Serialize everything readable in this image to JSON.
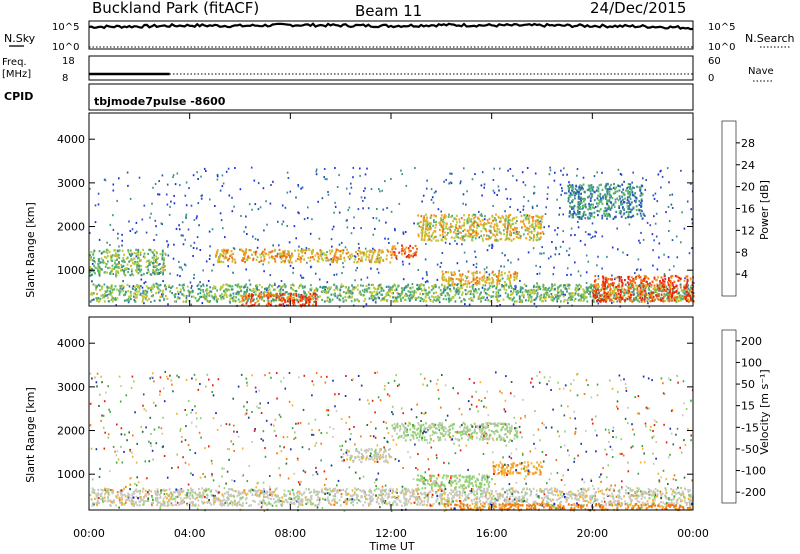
{
  "header": {
    "site": "Buckland Park (fitACF)",
    "beam": "Beam 11",
    "date": "24/Dec/2015"
  },
  "top_panels": {
    "nsky": {
      "label": "N.Sky",
      "left_ticks": [
        "10^5",
        "10^0"
      ],
      "right_ticks": [
        "10^5",
        "10^0"
      ]
    },
    "nsearch": {
      "label": "N.Search"
    },
    "freq": {
      "label_1": "Freq.",
      "label_2": "[MHz]",
      "left_ticks": [
        "18",
        "8"
      ],
      "right_ticks": [
        "60",
        "0"
      ]
    },
    "nave": {
      "label": "Nave"
    },
    "cpid": {
      "label": "CPID",
      "value": "tbjmode7pulse -8600"
    }
  },
  "x_axis": {
    "title": "Time UT",
    "ticks": [
      "00:00",
      "04:00",
      "08:00",
      "12:00",
      "16:00",
      "20:00",
      "00:00"
    ]
  },
  "power_panel": {
    "ylabel": "Slant Range [km]",
    "yticks": [
      "1000",
      "2000",
      "3000",
      "4000"
    ],
    "colorbar_title": "Power [dB]",
    "colorbar_ticks": [
      "4",
      "8",
      "12",
      "16",
      "20",
      "24",
      "28"
    ]
  },
  "velocity_panel": {
    "ylabel": "Slant Range [km]",
    "yticks": [
      "1000",
      "2000",
      "3000",
      "4000"
    ],
    "colorbar_title": "Velocity [m s⁻¹]",
    "colorbar_ticks": [
      "200",
      "100",
      "50",
      "15",
      "-15",
      "-50",
      "-100",
      "-200"
    ]
  },
  "colors": {
    "power_scale": [
      "#1f2fd8",
      "#2a55b8",
      "#3b8f8a",
      "#58b36a",
      "#b8c93a",
      "#f0a020",
      "#f26a12",
      "#e82410"
    ],
    "velocity_scale": [
      "#1b2fa8",
      "#2c6a3a",
      "#3aa83a",
      "#8fd070",
      "#c8c8c0",
      "#f5b030",
      "#f07a10",
      "#e02010"
    ]
  },
  "chart_data": [
    {
      "type": "line",
      "panel": "N.Sky",
      "x_unit": "hours UT",
      "x": [
        0,
        2,
        4,
        6,
        8,
        10,
        12,
        14,
        16,
        18,
        20,
        22,
        24
      ],
      "y_log10": [
        4.2,
        4.3,
        4.5,
        4.4,
        4.6,
        4.5,
        4.4,
        4.6,
        4.5,
        4.5,
        4.4,
        4.3,
        4.0
      ],
      "ylim_log10": [
        0,
        5
      ]
    },
    {
      "type": "line",
      "panel": "Freq",
      "x": [
        0,
        3.2,
        3.2,
        24
      ],
      "y": [
        10.5,
        10.5,
        null,
        null
      ],
      "ylim": [
        8,
        18
      ]
    },
    {
      "type": "heatmap",
      "panel": "Power",
      "x_unit": "hours UT",
      "xlim": [
        0,
        24
      ],
      "ylim": [
        180,
        4600
      ],
      "zlim": [
        0,
        30
      ],
      "echo_regions_km": [
        {
          "t": [
            0,
            24
          ],
          "range": [
            300,
            700
          ],
          "value_db": 14
        },
        {
          "t": [
            0,
            3
          ],
          "range": [
            900,
            1500
          ],
          "value_db": 14
        },
        {
          "t": [
            6,
            9
          ],
          "range": [
            200,
            500
          ],
          "value_db": 26
        },
        {
          "t": [
            5,
            12
          ],
          "range": [
            1200,
            1500
          ],
          "value_db": 20
        },
        {
          "t": [
            12,
            13
          ],
          "range": [
            1300,
            1600
          ],
          "value_db": 24
        },
        {
          "t": [
            13,
            18
          ],
          "range": [
            1700,
            2300
          ],
          "value_db": 18
        },
        {
          "t": [
            14,
            17
          ],
          "range": [
            700,
            1000
          ],
          "value_db": 20
        },
        {
          "t": [
            20,
            24
          ],
          "range": [
            300,
            900
          ],
          "value_db": 26
        },
        {
          "t": [
            19,
            22
          ],
          "range": [
            2200,
            3000
          ],
          "value_db": 10
        }
      ]
    },
    {
      "type": "heatmap",
      "panel": "Velocity",
      "x_unit": "hours UT",
      "xlim": [
        0,
        24
      ],
      "ylim": [
        180,
        4600
      ],
      "zlim": [
        -200,
        200
      ],
      "echo_regions_km": [
        {
          "t": [
            0,
            24
          ],
          "range": [
            300,
            700
          ],
          "value_ms": 0
        },
        {
          "t": [
            10,
            12
          ],
          "range": [
            1300,
            1600
          ],
          "value_ms": 0
        },
        {
          "t": [
            13,
            16
          ],
          "range": [
            700,
            1000
          ],
          "value_ms": 30
        },
        {
          "t": [
            16,
            18
          ],
          "range": [
            1000,
            1300
          ],
          "value_ms": -40
        },
        {
          "t": [
            12,
            17
          ],
          "range": [
            1800,
            2200
          ],
          "value_ms": 20
        },
        {
          "t": [
            14,
            24
          ],
          "range": [
            200,
            350
          ],
          "value_ms": -60
        }
      ]
    }
  ]
}
